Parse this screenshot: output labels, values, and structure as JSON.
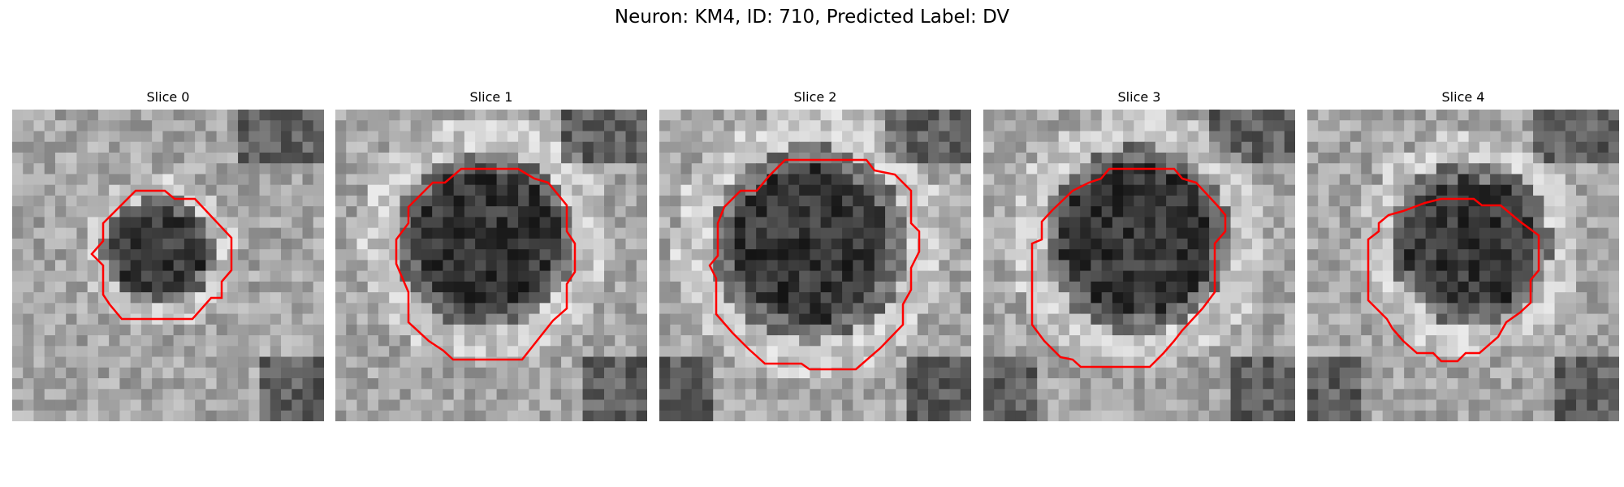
{
  "figure": {
    "title": "Neuron: KM4, ID: 710, Predicted Label: DV"
  },
  "panels": [
    {
      "title": "Slice 0"
    },
    {
      "title": "Slice 1"
    },
    {
      "title": "Slice 2"
    },
    {
      "title": "Slice 3"
    },
    {
      "title": "Slice 4"
    }
  ],
  "colors": {
    "contour": "#ff0000"
  }
}
